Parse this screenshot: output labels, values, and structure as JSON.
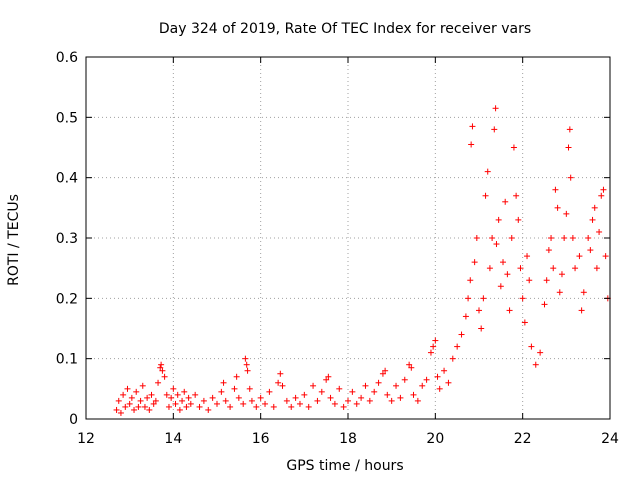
{
  "chart_data": {
    "type": "scatter",
    "title": "Day 324 of 2019, Rate Of TEC Index for receiver vars",
    "xlabel": "GPS time / hours",
    "ylabel": "ROTI / TECUs",
    "xlim": [
      12,
      24
    ],
    "ylim": [
      0,
      0.6
    ],
    "grid": true,
    "marker": "+",
    "color": "#ff0000",
    "x_ticks": [
      {
        "value": 12,
        "label": "12"
      },
      {
        "value": 14,
        "label": "14"
      },
      {
        "value": 16,
        "label": "16"
      },
      {
        "value": 18,
        "label": "18"
      },
      {
        "value": 20,
        "label": "20"
      },
      {
        "value": 22,
        "label": "22"
      },
      {
        "value": 24,
        "label": "24"
      }
    ],
    "y_ticks": [
      {
        "value": 0,
        "label": "0"
      },
      {
        "value": 0.1,
        "label": "0.1"
      },
      {
        "value": 0.2,
        "label": "0.2"
      },
      {
        "value": 0.3,
        "label": "0.3"
      },
      {
        "value": 0.4,
        "label": "0.4"
      },
      {
        "value": 0.5,
        "label": "0.5"
      },
      {
        "value": 0.6,
        "label": "0.6"
      }
    ],
    "series": [
      {
        "name": "ROTI",
        "points": [
          [
            12.7,
            0.015
          ],
          [
            12.75,
            0.03
          ],
          [
            12.8,
            0.01
          ],
          [
            12.85,
            0.04
          ],
          [
            12.9,
            0.02
          ],
          [
            12.95,
            0.05
          ],
          [
            13.0,
            0.025
          ],
          [
            13.05,
            0.035
          ],
          [
            13.1,
            0.015
          ],
          [
            13.15,
            0.045
          ],
          [
            13.2,
            0.02
          ],
          [
            13.25,
            0.03
          ],
          [
            13.3,
            0.055
          ],
          [
            13.35,
            0.02
          ],
          [
            13.4,
            0.035
          ],
          [
            13.45,
            0.015
          ],
          [
            13.5,
            0.04
          ],
          [
            13.55,
            0.025
          ],
          [
            13.6,
            0.03
          ],
          [
            13.65,
            0.06
          ],
          [
            13.7,
            0.085
          ],
          [
            13.72,
            0.09
          ],
          [
            13.75,
            0.08
          ],
          [
            13.8,
            0.07
          ],
          [
            13.85,
            0.04
          ],
          [
            13.9,
            0.02
          ],
          [
            13.95,
            0.035
          ],
          [
            14.0,
            0.05
          ],
          [
            14.05,
            0.025
          ],
          [
            14.1,
            0.04
          ],
          [
            14.15,
            0.015
          ],
          [
            14.2,
            0.03
          ],
          [
            14.25,
            0.045
          ],
          [
            14.3,
            0.02
          ],
          [
            14.35,
            0.035
          ],
          [
            14.4,
            0.025
          ],
          [
            14.5,
            0.04
          ],
          [
            14.6,
            0.02
          ],
          [
            14.7,
            0.03
          ],
          [
            14.8,
            0.015
          ],
          [
            14.9,
            0.035
          ],
          [
            15.0,
            0.025
          ],
          [
            15.1,
            0.045
          ],
          [
            15.15,
            0.06
          ],
          [
            15.2,
            0.03
          ],
          [
            15.3,
            0.02
          ],
          [
            15.4,
            0.05
          ],
          [
            15.45,
            0.07
          ],
          [
            15.5,
            0.035
          ],
          [
            15.6,
            0.025
          ],
          [
            15.65,
            0.1
          ],
          [
            15.68,
            0.09
          ],
          [
            15.7,
            0.08
          ],
          [
            15.75,
            0.05
          ],
          [
            15.8,
            0.03
          ],
          [
            15.9,
            0.02
          ],
          [
            16.0,
            0.035
          ],
          [
            16.1,
            0.025
          ],
          [
            16.2,
            0.045
          ],
          [
            16.3,
            0.02
          ],
          [
            16.4,
            0.06
          ],
          [
            16.45,
            0.075
          ],
          [
            16.5,
            0.055
          ],
          [
            16.6,
            0.03
          ],
          [
            16.7,
            0.02
          ],
          [
            16.8,
            0.035
          ],
          [
            16.9,
            0.025
          ],
          [
            17.0,
            0.04
          ],
          [
            17.1,
            0.02
          ],
          [
            17.2,
            0.055
          ],
          [
            17.3,
            0.03
          ],
          [
            17.4,
            0.045
          ],
          [
            17.5,
            0.065
          ],
          [
            17.55,
            0.07
          ],
          [
            17.6,
            0.035
          ],
          [
            17.7,
            0.025
          ],
          [
            17.8,
            0.05
          ],
          [
            17.9,
            0.02
          ],
          [
            18.0,
            0.03
          ],
          [
            18.1,
            0.045
          ],
          [
            18.2,
            0.025
          ],
          [
            18.3,
            0.035
          ],
          [
            18.4,
            0.055
          ],
          [
            18.5,
            0.03
          ],
          [
            18.6,
            0.045
          ],
          [
            18.7,
            0.06
          ],
          [
            18.8,
            0.075
          ],
          [
            18.85,
            0.08
          ],
          [
            18.9,
            0.04
          ],
          [
            19.0,
            0.03
          ],
          [
            19.1,
            0.055
          ],
          [
            19.2,
            0.035
          ],
          [
            19.3,
            0.065
          ],
          [
            19.4,
            0.09
          ],
          [
            19.45,
            0.085
          ],
          [
            19.5,
            0.04
          ],
          [
            19.6,
            0.03
          ],
          [
            19.7,
            0.055
          ],
          [
            19.8,
            0.065
          ],
          [
            19.9,
            0.11
          ],
          [
            19.95,
            0.12
          ],
          [
            20.0,
            0.13
          ],
          [
            20.05,
            0.07
          ],
          [
            20.1,
            0.05
          ],
          [
            20.2,
            0.08
          ],
          [
            20.3,
            0.06
          ],
          [
            20.4,
            0.1
          ],
          [
            20.5,
            0.12
          ],
          [
            20.6,
            0.14
          ],
          [
            20.7,
            0.17
          ],
          [
            20.75,
            0.2
          ],
          [
            20.8,
            0.23
          ],
          [
            20.82,
            0.455
          ],
          [
            20.85,
            0.485
          ],
          [
            20.9,
            0.26
          ],
          [
            20.95,
            0.3
          ],
          [
            21.0,
            0.18
          ],
          [
            21.05,
            0.15
          ],
          [
            21.1,
            0.2
          ],
          [
            21.15,
            0.37
          ],
          [
            21.2,
            0.41
          ],
          [
            21.25,
            0.25
          ],
          [
            21.3,
            0.3
          ],
          [
            21.35,
            0.48
          ],
          [
            21.38,
            0.515
          ],
          [
            21.4,
            0.29
          ],
          [
            21.45,
            0.33
          ],
          [
            21.5,
            0.22
          ],
          [
            21.55,
            0.26
          ],
          [
            21.6,
            0.36
          ],
          [
            21.65,
            0.24
          ],
          [
            21.7,
            0.18
          ],
          [
            21.75,
            0.3
          ],
          [
            21.8,
            0.45
          ],
          [
            21.85,
            0.37
          ],
          [
            21.9,
            0.33
          ],
          [
            21.95,
            0.25
          ],
          [
            22.0,
            0.2
          ],
          [
            22.05,
            0.16
          ],
          [
            22.1,
            0.27
          ],
          [
            22.15,
            0.23
          ],
          [
            22.2,
            0.12
          ],
          [
            22.3,
            0.09
          ],
          [
            22.4,
            0.11
          ],
          [
            22.5,
            0.19
          ],
          [
            22.55,
            0.23
          ],
          [
            22.6,
            0.28
          ],
          [
            22.65,
            0.3
          ],
          [
            22.7,
            0.25
          ],
          [
            22.75,
            0.38
          ],
          [
            22.8,
            0.35
          ],
          [
            22.85,
            0.21
          ],
          [
            22.9,
            0.24
          ],
          [
            22.95,
            0.3
          ],
          [
            23.0,
            0.34
          ],
          [
            23.05,
            0.45
          ],
          [
            23.08,
            0.48
          ],
          [
            23.1,
            0.4
          ],
          [
            23.15,
            0.3
          ],
          [
            23.2,
            0.25
          ],
          [
            23.3,
            0.27
          ],
          [
            23.35,
            0.18
          ],
          [
            23.4,
            0.21
          ],
          [
            23.5,
            0.3
          ],
          [
            23.55,
            0.28
          ],
          [
            23.6,
            0.33
          ],
          [
            23.65,
            0.35
          ],
          [
            23.7,
            0.25
          ],
          [
            23.75,
            0.31
          ],
          [
            23.8,
            0.37
          ],
          [
            23.85,
            0.38
          ],
          [
            23.9,
            0.27
          ],
          [
            23.95,
            0.2
          ]
        ]
      }
    ]
  }
}
